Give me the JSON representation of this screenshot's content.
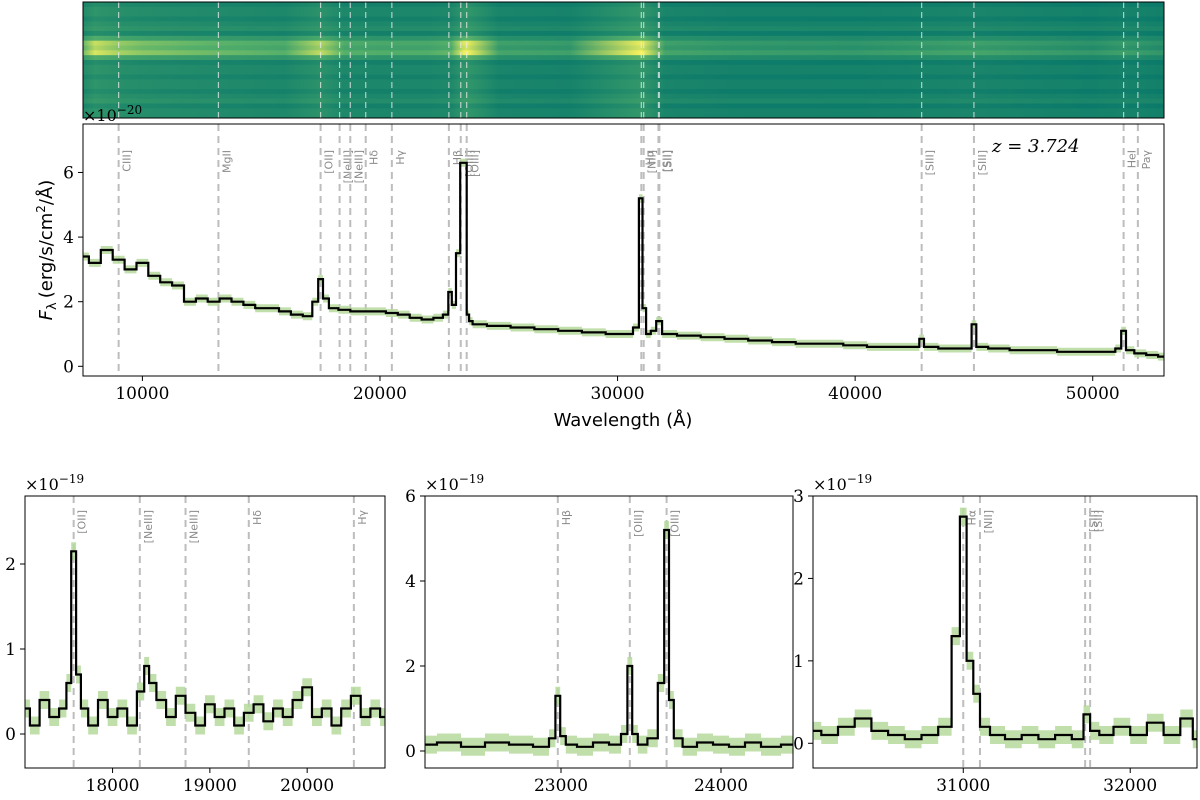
{
  "colors": {
    "spectrum": "#000000",
    "error_band": "#b5d99c",
    "line_marker": "#bdbdbd",
    "line_label": "#8a8a8a",
    "image_low": "#0b7a6a",
    "image_mid": "#55b06a",
    "image_high": "#fbf35c"
  },
  "chart_data": [
    {
      "type": "heatmap",
      "description_free": true,
      "xlim": [
        7500,
        53000
      ],
      "rows": 24,
      "bright_rows": [
        8,
        9,
        10
      ],
      "x": [
        7500,
        8000,
        9000,
        10000,
        12000,
        14000,
        16000,
        17500,
        18500,
        20000,
        22000,
        23000,
        23500,
        23650,
        25000,
        28000,
        31000,
        32000,
        35000,
        40000,
        45000,
        50000,
        51300,
        53000
      ],
      "intensity": [
        0.55,
        0.85,
        0.7,
        0.62,
        0.55,
        0.5,
        0.45,
        0.78,
        0.45,
        0.42,
        0.42,
        0.5,
        0.9,
        0.95,
        0.35,
        0.3,
        0.95,
        0.35,
        0.28,
        0.25,
        0.35,
        0.22,
        0.3,
        0.2
      ],
      "line_markers_x": [
        9000,
        13200,
        17500,
        18300,
        18750,
        19400,
        20500,
        22900,
        23400,
        23650,
        31000,
        31100,
        31720,
        31760,
        42800,
        45000,
        51300,
        51900
      ]
    },
    {
      "type": "line",
      "xlabel": "Wavelength (Å)",
      "ylabel": "F_λ (erg/s/cm²/Å)",
      "ylabel_main": "F",
      "ylabel_sub": "λ",
      "ylabel_unit": "(erg/s/cm",
      "ylabel_sup": "2",
      "ylabel_tail": "/Å)",
      "scale_exp": "×10",
      "scale_pow": "−20",
      "annotation": "z = 3.724",
      "xlim": [
        7500,
        53000
      ],
      "ylim": [
        -0.3,
        7.5
      ],
      "xticks": [
        10000,
        20000,
        30000,
        40000,
        50000
      ],
      "xtick_labels": [
        "10000",
        "20000",
        "30000",
        "40000",
        "50000"
      ],
      "yticks": [
        0,
        2,
        4,
        6
      ],
      "ytick_labels": [
        "0",
        "2",
        "4",
        "6"
      ],
      "series": [
        {
          "x": [
            7500,
            8000,
            8500,
            9000,
            9500,
            10000,
            10500,
            11000,
            11500,
            12000,
            12500,
            13000,
            13500,
            14000,
            14500,
            15000,
            15500,
            16000,
            16500,
            17000,
            17300,
            17500,
            17700,
            18000,
            18500,
            19000,
            19500,
            20000,
            20500,
            21000,
            21500,
            22000,
            22500,
            22800,
            22950,
            23100,
            23300,
            23450,
            23600,
            23700,
            23800,
            24000,
            25000,
            26000,
            27000,
            28000,
            29000,
            30000,
            30500,
            30800,
            31000,
            31100,
            31300,
            31500,
            31750,
            32000,
            33000,
            34000,
            35000,
            36000,
            37000,
            38000,
            39000,
            40000,
            41000,
            42000,
            42600,
            42800,
            43000,
            44000,
            44800,
            45000,
            45200,
            46000,
            47000,
            48000,
            49000,
            50000,
            50800,
            51100,
            51300,
            51500,
            52000,
            52500,
            53000
          ],
          "y": [
            3.4,
            3.2,
            3.6,
            3.3,
            3.0,
            3.2,
            2.8,
            2.6,
            2.5,
            2.0,
            2.1,
            2.0,
            2.1,
            2.0,
            1.9,
            1.8,
            1.8,
            1.7,
            1.6,
            1.55,
            2.0,
            2.7,
            2.1,
            1.8,
            1.75,
            1.7,
            1.7,
            1.7,
            1.65,
            1.6,
            1.5,
            1.45,
            1.5,
            1.6,
            2.3,
            1.9,
            3.5,
            6.3,
            6.3,
            1.6,
            1.4,
            1.3,
            1.25,
            1.2,
            1.15,
            1.1,
            1.05,
            1.0,
            1.0,
            1.2,
            5.2,
            1.8,
            1.0,
            1.1,
            1.4,
            1.0,
            0.95,
            0.9,
            0.85,
            0.8,
            0.75,
            0.7,
            0.7,
            0.65,
            0.6,
            0.6,
            0.6,
            0.85,
            0.6,
            0.55,
            0.55,
            1.3,
            0.6,
            0.55,
            0.5,
            0.5,
            0.45,
            0.45,
            0.45,
            0.55,
            1.1,
            0.5,
            0.4,
            0.35,
            0.3
          ]
        }
      ],
      "lines": [
        {
          "x": 9000,
          "label": "CIII]"
        },
        {
          "x": 13200,
          "label": "MgII"
        },
        {
          "x": 17500,
          "label": "[OII]"
        },
        {
          "x": 18300,
          "label": "[NeIII]"
        },
        {
          "x": 18750,
          "label": "[NeIII]"
        },
        {
          "x": 19400,
          "label": "Hδ"
        },
        {
          "x": 20500,
          "label": "Hγ"
        },
        {
          "x": 22900,
          "label": "Hβ"
        },
        {
          "x": 23400,
          "label": "[OIII]"
        },
        {
          "x": 23650,
          "label": "[OIII]"
        },
        {
          "x": 31000,
          "label": "Hα"
        },
        {
          "x": 31100,
          "label": "[NII]"
        },
        {
          "x": 31720,
          "label": "[SII]"
        },
        {
          "x": 31760,
          "label": "[SII]"
        },
        {
          "x": 42800,
          "label": "[SIII]"
        },
        {
          "x": 45000,
          "label": "[SIII]"
        },
        {
          "x": 51300,
          "label": "HeI"
        },
        {
          "x": 51900,
          "label": "Paγ"
        }
      ]
    },
    {
      "type": "line",
      "scale_exp": "×10",
      "scale_pow": "−19",
      "xlim": [
        17100,
        20800
      ],
      "ylim": [
        -0.4,
        2.8
      ],
      "xticks": [
        18000,
        19000,
        20000
      ],
      "xtick_labels": [
        "18000",
        "19000",
        "20000"
      ],
      "yticks": [
        0,
        1,
        2
      ],
      "ytick_labels": [
        "0",
        "1",
        "2"
      ],
      "series": [
        {
          "x": [
            17100,
            17200,
            17300,
            17400,
            17500,
            17550,
            17600,
            17650,
            17700,
            17800,
            17900,
            18000,
            18100,
            18200,
            18300,
            18350,
            18400,
            18500,
            18600,
            18700,
            18800,
            18900,
            19000,
            19100,
            19200,
            19300,
            19400,
            19500,
            19600,
            19700,
            19800,
            19900,
            20000,
            20100,
            20200,
            20300,
            20400,
            20500,
            20600,
            20700,
            20800
          ],
          "y": [
            0.3,
            0.1,
            0.4,
            0.2,
            0.3,
            0.6,
            2.15,
            0.7,
            0.3,
            0.1,
            0.4,
            0.2,
            0.3,
            0.1,
            0.5,
            0.8,
            0.6,
            0.4,
            0.2,
            0.45,
            0.25,
            0.1,
            0.35,
            0.2,
            0.3,
            0.1,
            0.25,
            0.35,
            0.15,
            0.3,
            0.2,
            0.4,
            0.55,
            0.2,
            0.3,
            0.1,
            0.3,
            0.45,
            0.2,
            0.3,
            0.2
          ]
        }
      ],
      "lines": [
        {
          "x": 17600,
          "label": "[OII]"
        },
        {
          "x": 18280,
          "label": "[NeIII]"
        },
        {
          "x": 18750,
          "label": "[NeIII]"
        },
        {
          "x": 19400,
          "label": "Hδ"
        },
        {
          "x": 20480,
          "label": "Hγ"
        }
      ]
    },
    {
      "type": "line",
      "scale_exp": "×10",
      "scale_pow": "−19",
      "xlim": [
        22150,
        24450
      ],
      "ylim": [
        -0.4,
        6.0
      ],
      "xticks": [
        23000,
        24000
      ],
      "xtick_labels": [
        "23000",
        "24000"
      ],
      "yticks": [
        0,
        2,
        4,
        6
      ],
      "ytick_labels": [
        "0",
        "2",
        "4",
        "6"
      ],
      "series": [
        {
          "x": [
            22150,
            22300,
            22450,
            22600,
            22750,
            22900,
            22950,
            22980,
            23010,
            23050,
            23150,
            23250,
            23350,
            23400,
            23430,
            23460,
            23500,
            23580,
            23630,
            23660,
            23690,
            23720,
            23800,
            23900,
            24000,
            24100,
            24200,
            24300,
            24450
          ],
          "y": [
            0.15,
            0.2,
            0.1,
            0.2,
            0.15,
            0.1,
            0.3,
            1.3,
            0.35,
            0.15,
            0.1,
            0.2,
            0.15,
            0.4,
            2.0,
            0.4,
            0.15,
            0.3,
            1.6,
            5.2,
            1.2,
            0.3,
            0.1,
            0.2,
            0.15,
            0.1,
            0.2,
            0.1,
            0.15
          ]
        }
      ],
      "lines": [
        {
          "x": 22980,
          "label": "Hβ"
        },
        {
          "x": 23430,
          "label": "[OIII]"
        },
        {
          "x": 23660,
          "label": "[OIII]"
        }
      ]
    },
    {
      "type": "line",
      "scale_exp": "×10",
      "scale_pow": "−19",
      "xlim": [
        30100,
        32400
      ],
      "ylim": [
        -0.3,
        3.0
      ],
      "xticks": [
        31000,
        32000
      ],
      "xtick_labels": [
        "31000",
        "32000"
      ],
      "yticks": [
        0,
        1,
        2,
        3
      ],
      "ytick_labels": [
        "0",
        "1",
        "2",
        "3"
      ],
      "series": [
        {
          "x": [
            30100,
            30200,
            30300,
            30400,
            30500,
            30600,
            30700,
            30800,
            30900,
            30960,
            31000,
            31040,
            31080,
            31120,
            31200,
            31300,
            31400,
            31500,
            31600,
            31700,
            31740,
            31780,
            31850,
            31950,
            32050,
            32150,
            32250,
            32350,
            32400
          ],
          "y": [
            0.15,
            0.1,
            0.2,
            0.3,
            0.15,
            0.1,
            0.05,
            0.1,
            0.2,
            1.3,
            2.75,
            1.0,
            0.6,
            0.2,
            0.1,
            0.05,
            0.1,
            0.05,
            0.1,
            0.05,
            0.35,
            0.15,
            0.1,
            0.2,
            0.1,
            0.25,
            0.1,
            0.3,
            0.05
          ]
        }
      ],
      "lines": [
        {
          "x": 31000,
          "label": "Hα"
        },
        {
          "x": 31100,
          "label": "[NII]"
        },
        {
          "x": 31730,
          "label": "[SII]"
        },
        {
          "x": 31760,
          "label": "[SII]"
        }
      ]
    }
  ]
}
